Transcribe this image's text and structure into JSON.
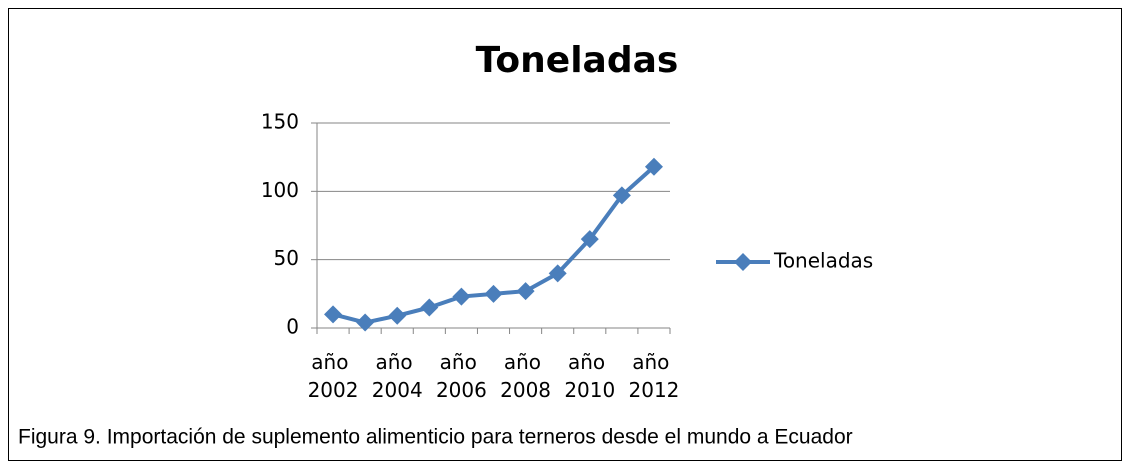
{
  "chart_data": {
    "type": "line",
    "title": "Toneladas",
    "categories": [
      "año 2002",
      null,
      "año 2004",
      null,
      "año 2006",
      null,
      "año 2008",
      null,
      "año 2010",
      null,
      "año 2012"
    ],
    "series": [
      {
        "name": "Toneladas",
        "color": "#4a7ebb",
        "values": [
          10,
          4,
          9,
          15,
          23,
          25,
          27,
          40,
          65,
          97,
          118
        ]
      }
    ],
    "ylim": [
      0,
      150
    ],
    "yticks": [
      0,
      50,
      100,
      150
    ],
    "grid": true,
    "legend": "right",
    "caption": "Figura 9.  Importación de suplemento alimenticio para terneros desde el mundo a Ecuador"
  }
}
